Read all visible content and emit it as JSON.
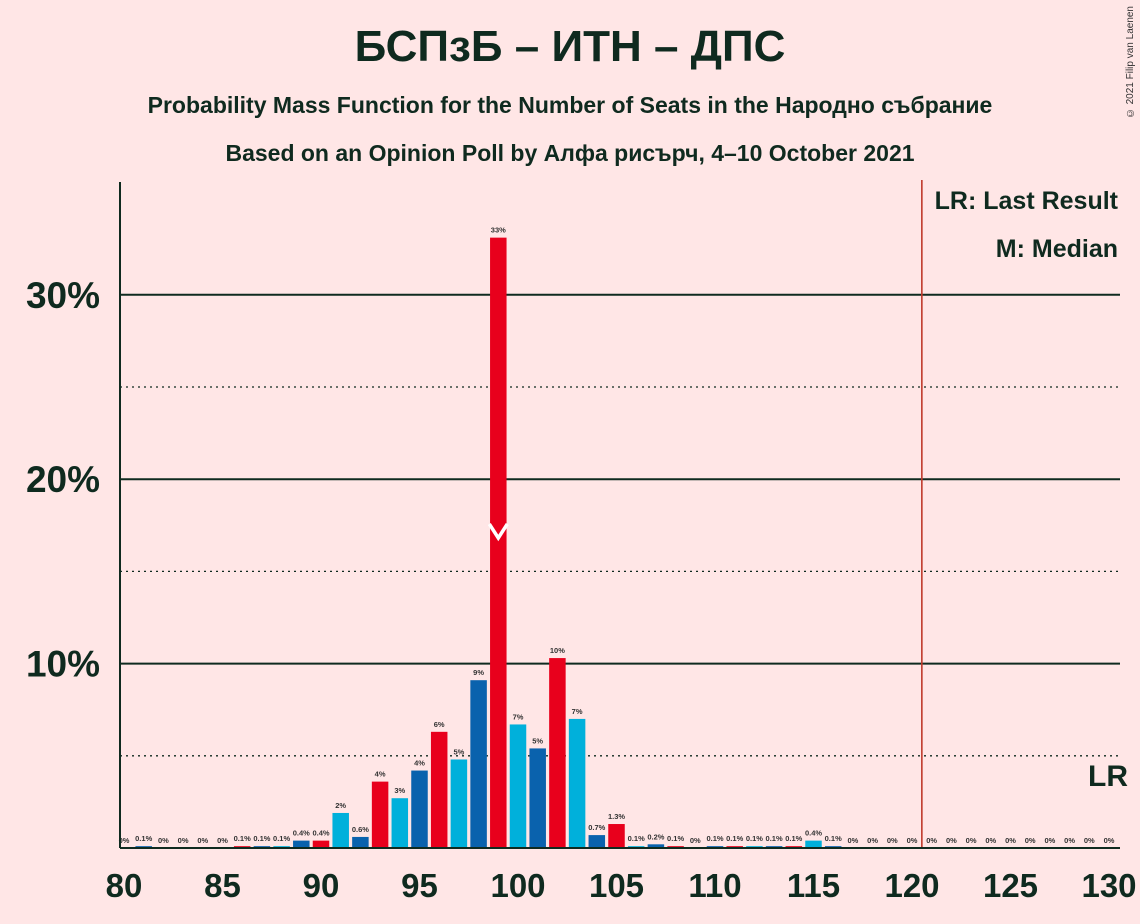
{
  "title": "БСПзБ – ИТН – ДПС",
  "subtitle1": "Probability Mass Function for the Number of Seats in the Народно събрание",
  "subtitle2": "Based on an Opinion Poll by Алфа рисърч, 4–10 October 2021",
  "copyright": "© 2021 Filip van Laenen",
  "legend": {
    "lr": "LR: Last Result",
    "m": "M: Median"
  },
  "lr_marker_label": "LR",
  "colors": {
    "background": "#FFE6E6",
    "red": "#E8001C",
    "blue": "#0A62AD",
    "cyan": "#00B0DB",
    "lr_line": "#C0392B"
  },
  "chart_data": {
    "type": "bar",
    "x_axis": {
      "min": 80,
      "max": 130,
      "ticks": [
        80,
        85,
        90,
        95,
        100,
        105,
        110,
        115,
        120,
        125,
        130
      ]
    },
    "y_axis": {
      "min": 0,
      "max": 36,
      "major_ticks": [
        10,
        20,
        30
      ],
      "tick_labels": [
        "10%",
        "20%",
        "30%"
      ],
      "minor_gridlines": [
        5,
        15,
        25
      ]
    },
    "last_result": 121,
    "median": 99,
    "bars": [
      {
        "x": 80,
        "v": 0,
        "label": "0%",
        "color": "red"
      },
      {
        "x": 81,
        "v": 0.1,
        "label": "0.1%",
        "color": "blue"
      },
      {
        "x": 82,
        "v": 0,
        "label": "0%",
        "color": "cyan"
      },
      {
        "x": 83,
        "v": 0,
        "label": "0%",
        "color": "red"
      },
      {
        "x": 84,
        "v": 0,
        "label": "0%",
        "color": "blue"
      },
      {
        "x": 85,
        "v": 0,
        "label": "0%",
        "color": "cyan"
      },
      {
        "x": 86,
        "v": 0.1,
        "label": "0.1%",
        "color": "red"
      },
      {
        "x": 87,
        "v": 0.1,
        "label": "0.1%",
        "color": "blue"
      },
      {
        "x": 88,
        "v": 0.1,
        "label": "0.1%",
        "color": "cyan"
      },
      {
        "x": 89,
        "v": 0.4,
        "label": "0.4%",
        "color": "blue"
      },
      {
        "x": 90,
        "v": 0.4,
        "label": "0.4%",
        "color": "red"
      },
      {
        "x": 91,
        "v": 1.9,
        "label": "2%",
        "color": "cyan"
      },
      {
        "x": 92,
        "v": 0.6,
        "label": "0.6%",
        "color": "blue"
      },
      {
        "x": 93,
        "v": 3.6,
        "label": "4%",
        "color": "red"
      },
      {
        "x": 94,
        "v": 2.7,
        "label": "3%",
        "color": "cyan"
      },
      {
        "x": 95,
        "v": 4.2,
        "label": "4%",
        "color": "blue"
      },
      {
        "x": 96,
        "v": 6.3,
        "label": "6%",
        "color": "red"
      },
      {
        "x": 97,
        "v": 4.8,
        "label": "5%",
        "color": "cyan"
      },
      {
        "x": 98,
        "v": 9.1,
        "label": "9%",
        "color": "blue"
      },
      {
        "x": 99,
        "v": 33.1,
        "label": "33%",
        "color": "red"
      },
      {
        "x": 100,
        "v": 6.7,
        "label": "7%",
        "color": "cyan"
      },
      {
        "x": 101,
        "v": 5.4,
        "label": "5%",
        "color": "blue"
      },
      {
        "x": 102,
        "v": 10.3,
        "label": "10%",
        "color": "red"
      },
      {
        "x": 103,
        "v": 7.0,
        "label": "7%",
        "color": "cyan"
      },
      {
        "x": 104,
        "v": 0.7,
        "label": "0.7%",
        "color": "blue"
      },
      {
        "x": 105,
        "v": 1.3,
        "label": "1.3%",
        "color": "red"
      },
      {
        "x": 106,
        "v": 0.1,
        "label": "0.1%",
        "color": "cyan"
      },
      {
        "x": 107,
        "v": 0.2,
        "label": "0.2%",
        "color": "blue"
      },
      {
        "x": 108,
        "v": 0.1,
        "label": "0.1%",
        "color": "red"
      },
      {
        "x": 109,
        "v": 0,
        "label": "0%",
        "color": "cyan"
      },
      {
        "x": 110,
        "v": 0.1,
        "label": "0.1%",
        "color": "blue"
      },
      {
        "x": 111,
        "v": 0.1,
        "label": "0.1%",
        "color": "red"
      },
      {
        "x": 112,
        "v": 0.1,
        "label": "0.1%",
        "color": "cyan"
      },
      {
        "x": 113,
        "v": 0.1,
        "label": "0.1%",
        "color": "blue"
      },
      {
        "x": 114,
        "v": 0.1,
        "label": "0.1%",
        "color": "red"
      },
      {
        "x": 115,
        "v": 0.4,
        "label": "0.4%",
        "color": "cyan"
      },
      {
        "x": 116,
        "v": 0.1,
        "label": "0.1%",
        "color": "blue"
      },
      {
        "x": 117,
        "v": 0,
        "label": "0%",
        "color": "red"
      },
      {
        "x": 118,
        "v": 0,
        "label": "0%",
        "color": "cyan"
      },
      {
        "x": 119,
        "v": 0,
        "label": "0%",
        "color": "blue"
      },
      {
        "x": 120,
        "v": 0,
        "label": "0%",
        "color": "red"
      },
      {
        "x": 121,
        "v": 0,
        "label": "0%",
        "color": "cyan"
      },
      {
        "x": 122,
        "v": 0,
        "label": "0%",
        "color": "blue"
      },
      {
        "x": 123,
        "v": 0,
        "label": "0%",
        "color": "red"
      },
      {
        "x": 124,
        "v": 0,
        "label": "0%",
        "color": "cyan"
      },
      {
        "x": 125,
        "v": 0,
        "label": "0%",
        "color": "blue"
      },
      {
        "x": 126,
        "v": 0,
        "label": "0%",
        "color": "red"
      },
      {
        "x": 127,
        "v": 0,
        "label": "0%",
        "color": "cyan"
      },
      {
        "x": 128,
        "v": 0,
        "label": "0%",
        "color": "blue"
      },
      {
        "x": 129,
        "v": 0,
        "label": "0%",
        "color": "red"
      },
      {
        "x": 130,
        "v": 0,
        "label": "0%",
        "color": "cyan"
      }
    ]
  }
}
